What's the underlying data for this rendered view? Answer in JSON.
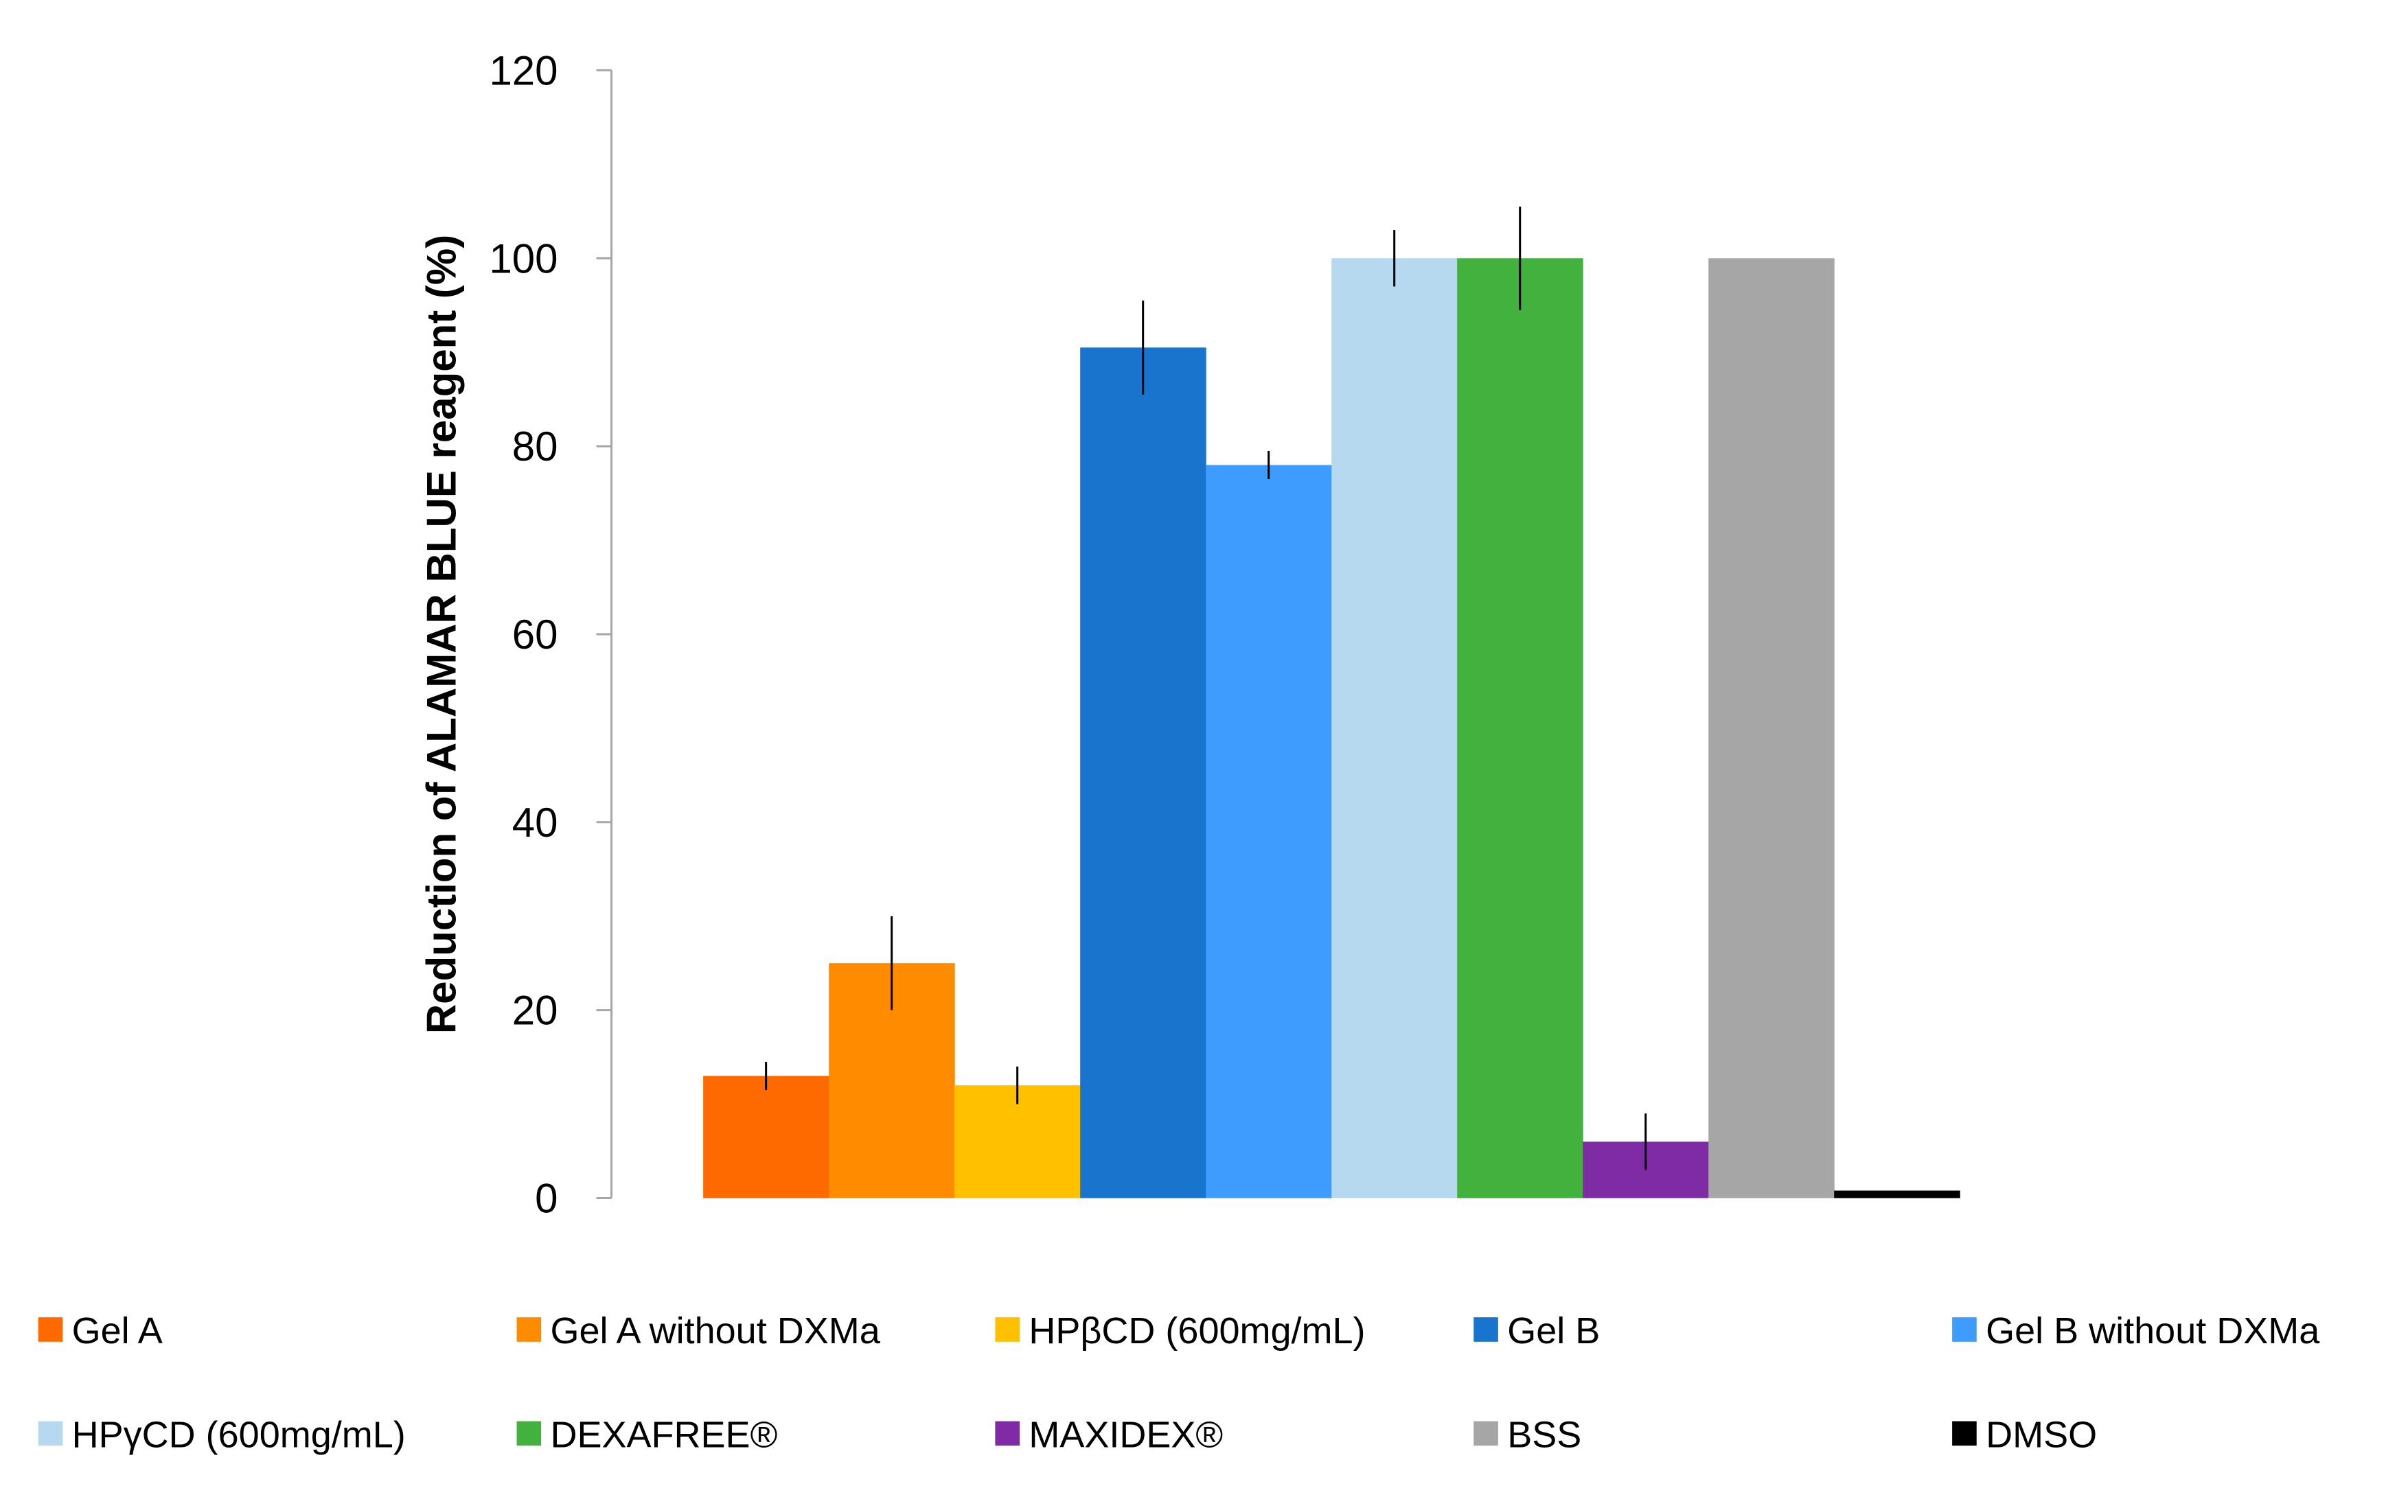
{
  "chart_data": {
    "type": "bar",
    "title": "",
    "xlabel": "",
    "ylabel": "Reduction of ALAMAR BLUE reagent (%)",
    "ylim": [
      0,
      120
    ],
    "yticks": [
      0,
      20,
      40,
      60,
      80,
      100,
      120
    ],
    "legend_position": "bottom",
    "series": [
      {
        "name": "Gel A",
        "value": 13,
        "error": 1.5,
        "color": "#FF6A00"
      },
      {
        "name": "Gel A without DXMa",
        "value": 25,
        "error": 5,
        "color": "#FF8C00"
      },
      {
        "name": "HPβCD (600mg/mL)",
        "value": 12,
        "error": 2,
        "color": "#FFC000"
      },
      {
        "name": "Gel B",
        "value": 90.5,
        "error": 5,
        "color": "#1874CD"
      },
      {
        "name": "Gel B without DXMa",
        "value": 78,
        "error": 1.5,
        "color": "#3E9BFF"
      },
      {
        "name": "HPγCD (600mg/mL)",
        "value": 100,
        "error": 3,
        "color": "#B7D9F0"
      },
      {
        "name": "DEXAFREE®",
        "value": 100,
        "error": 5.5,
        "color": "#43B13E"
      },
      {
        "name": "MAXIDEX®",
        "value": 6,
        "error": 3,
        "color": "#7F2BA5"
      },
      {
        "name": "BSS",
        "value": 100,
        "error": 0,
        "color": "#A6A6A6"
      },
      {
        "name": "DMSO",
        "value": 0.8,
        "error": 0,
        "color": "#000000"
      }
    ]
  }
}
